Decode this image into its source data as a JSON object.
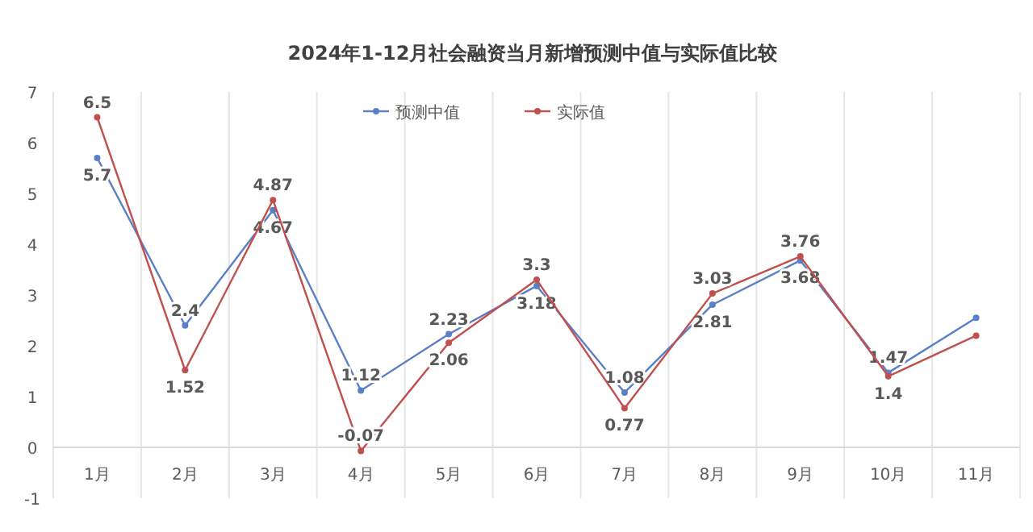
{
  "chart_data": {
    "type": "line",
    "title": "2024年1-12月社会融资当月新增预测中值与实际值比较",
    "categories": [
      "1月",
      "2月",
      "3月",
      "4月",
      "5月",
      "6月",
      "7月",
      "8月",
      "9月",
      "10月",
      "11月"
    ],
    "series": [
      {
        "name": "预测中值",
        "color": "#5b7fc7",
        "values": [
          5.7,
          2.4,
          4.67,
          1.12,
          2.23,
          3.18,
          1.08,
          2.81,
          3.68,
          1.47,
          2.55
        ],
        "value_labels": [
          "5.7",
          "2.4",
          "4.67",
          "1.12",
          "2.23",
          "3.18",
          "1.08",
          "2.81",
          "3.68",
          "1.47",
          null
        ]
      },
      {
        "name": "实际值",
        "color": "#c0504d",
        "values": [
          6.5,
          1.52,
          4.87,
          -0.07,
          2.06,
          3.3,
          0.77,
          3.03,
          3.76,
          1.4,
          2.2
        ],
        "value_labels": [
          "6.5",
          "1.52",
          "4.87",
          "-0.07",
          "2.06",
          "3.3",
          "0.77",
          "3.03",
          "3.76",
          "1.4",
          null
        ]
      }
    ],
    "ylim": [
      -1,
      7
    ],
    "yticks": [
      -1,
      0,
      1,
      2,
      3,
      4,
      5,
      6,
      7
    ],
    "grid": "x",
    "legend": "top",
    "marker": "circle",
    "line_style": "solid"
  }
}
